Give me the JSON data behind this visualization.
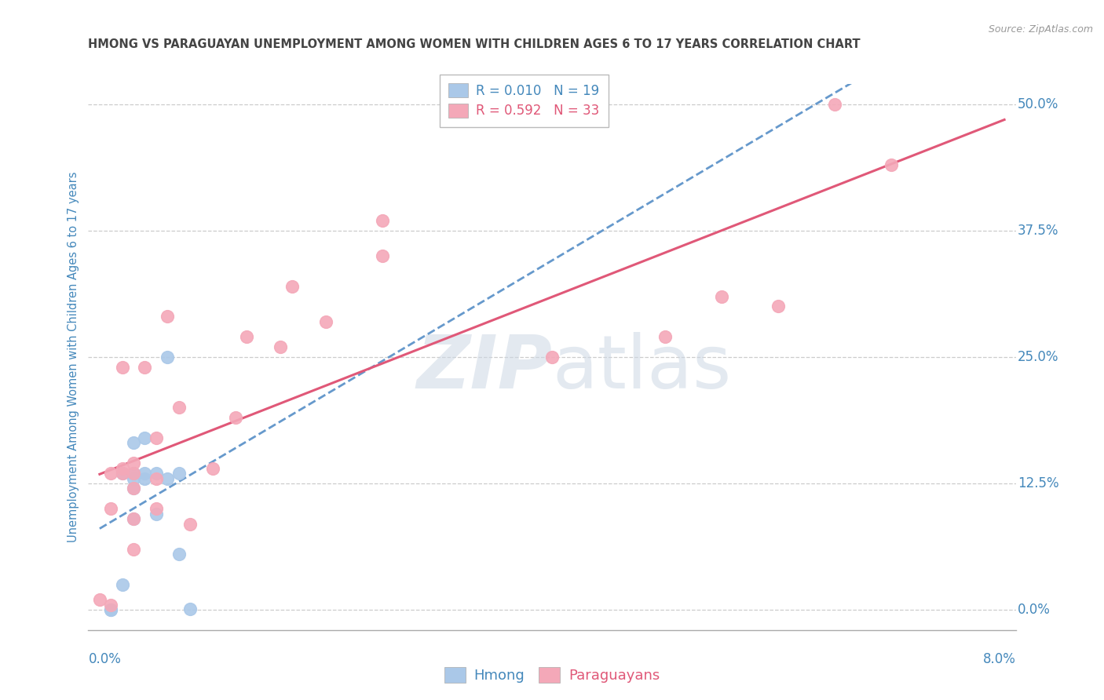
{
  "title": "HMONG VS PARAGUAYAN UNEMPLOYMENT AMONG WOMEN WITH CHILDREN AGES 6 TO 17 YEARS CORRELATION CHART",
  "source": "Source: ZipAtlas.com",
  "ylabel": "Unemployment Among Women with Children Ages 6 to 17 years",
  "hmong_R": 0.01,
  "hmong_N": 19,
  "paraguayan_R": 0.592,
  "paraguayan_N": 33,
  "hmong_color": "#aac8e8",
  "paraguayan_color": "#f4a8b8",
  "hmong_line_color": "#6699cc",
  "paraguayan_line_color": "#e05878",
  "axis_label_color": "#4488bb",
  "title_color": "#444444",
  "watermark_color": "#cdd8e4",
  "grid_color": "#cccccc",
  "xlim": [
    0.0,
    0.08
  ],
  "ylim": [
    0.0,
    0.52
  ],
  "y_ticks": [
    0.0,
    0.125,
    0.25,
    0.375,
    0.5
  ],
  "y_tick_labels": [
    "0.0%",
    "12.5%",
    "25.0%",
    "37.5%",
    "50.0%"
  ],
  "hmong_x": [
    0.001,
    0.001,
    0.002,
    0.002,
    0.003,
    0.003,
    0.003,
    0.003,
    0.003,
    0.004,
    0.004,
    0.004,
    0.005,
    0.005,
    0.006,
    0.006,
    0.007,
    0.007,
    0.008
  ],
  "hmong_y": [
    0.0,
    0.0,
    0.025,
    0.135,
    0.09,
    0.12,
    0.13,
    0.135,
    0.165,
    0.13,
    0.135,
    0.17,
    0.095,
    0.135,
    0.13,
    0.25,
    0.055,
    0.135,
    0.001
  ],
  "paraguayan_x": [
    0.0,
    0.001,
    0.001,
    0.001,
    0.002,
    0.002,
    0.002,
    0.003,
    0.003,
    0.003,
    0.003,
    0.003,
    0.004,
    0.005,
    0.005,
    0.005,
    0.006,
    0.007,
    0.008,
    0.01,
    0.012,
    0.013,
    0.016,
    0.017,
    0.02,
    0.025,
    0.025,
    0.04,
    0.05,
    0.055,
    0.06,
    0.065,
    0.07
  ],
  "paraguayan_y": [
    0.01,
    0.005,
    0.1,
    0.135,
    0.14,
    0.135,
    0.24,
    0.06,
    0.09,
    0.12,
    0.135,
    0.145,
    0.24,
    0.1,
    0.13,
    0.17,
    0.29,
    0.2,
    0.085,
    0.14,
    0.19,
    0.27,
    0.26,
    0.32,
    0.285,
    0.35,
    0.385,
    0.25,
    0.27,
    0.31,
    0.3,
    0.5,
    0.44
  ]
}
